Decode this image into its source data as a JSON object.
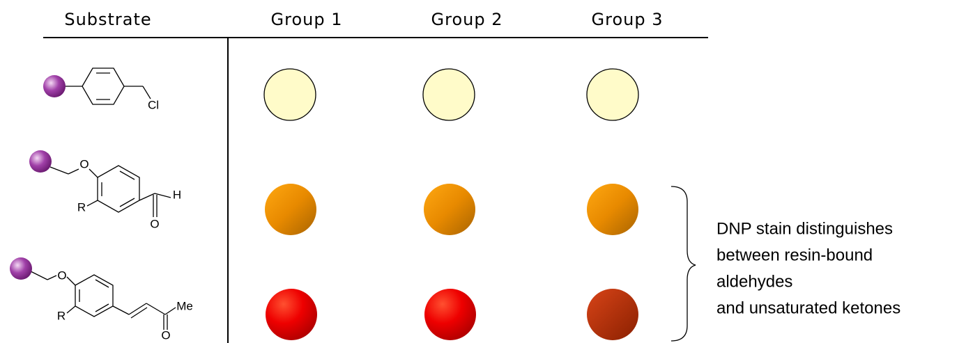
{
  "table": {
    "header": [
      "Substrate",
      "Group 1",
      "Group 2",
      "Group 3"
    ],
    "rows": [
      {
        "substrate_labels": [
          "Cl"
        ]
      },
      {
        "substrate_labels": [
          "O",
          "R",
          "H",
          "O"
        ]
      },
      {
        "substrate_labels": [
          "O",
          "R",
          "Me",
          "O"
        ]
      }
    ]
  },
  "annotation": [
    "DNP stain distinguishes",
    "between resin-bound",
    "aldehydes",
    "and unsaturated ketones"
  ]
}
